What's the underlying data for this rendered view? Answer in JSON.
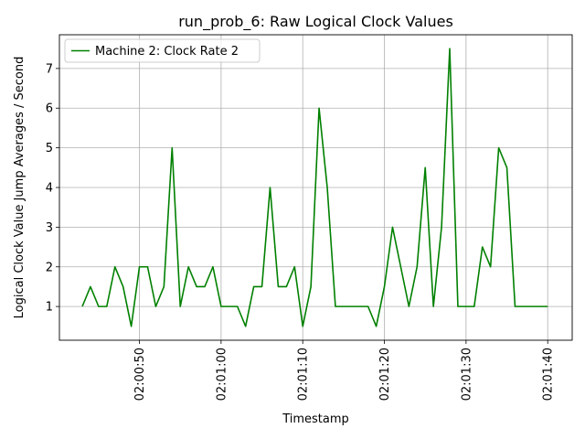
{
  "chart_data": {
    "type": "line",
    "title": "run_prob_6: Raw Logical Clock Values",
    "xlabel": "Timestamp",
    "ylabel": "Logical Clock Value Jump Averages / Second",
    "x_start": "02:00:43",
    "x_step_seconds": 1,
    "x_end": "02:01:40",
    "xlim": [
      "02:00:40.2",
      "02:01:43"
    ],
    "ylim": [
      0.15,
      7.85
    ],
    "xticks": [
      "02:00:50",
      "02:01:00",
      "02:01:10",
      "02:01:20",
      "02:01:30",
      "02:01:40"
    ],
    "yticks": [
      1,
      2,
      3,
      4,
      5,
      6,
      7
    ],
    "grid": true,
    "legend_position": "top-left",
    "series": [
      {
        "name": "Machine 2: Clock Rate 2",
        "color": "#008000",
        "values": [
          1,
          1.5,
          1,
          1,
          2,
          1.5,
          0.5,
          2,
          2,
          1,
          1.5,
          5,
          1,
          2,
          1.5,
          1.5,
          2,
          1,
          1,
          1,
          0.5,
          1.5,
          1.5,
          4,
          1.5,
          1.5,
          2,
          0.5,
          1.5,
          6,
          4,
          1,
          1,
          1,
          1,
          1,
          0.5,
          1.5,
          3,
          2,
          1,
          2,
          4.5,
          1,
          3,
          7.5,
          1,
          1,
          1,
          2.5,
          2,
          5,
          4.5,
          1,
          1,
          1,
          1,
          1
        ]
      }
    ]
  }
}
